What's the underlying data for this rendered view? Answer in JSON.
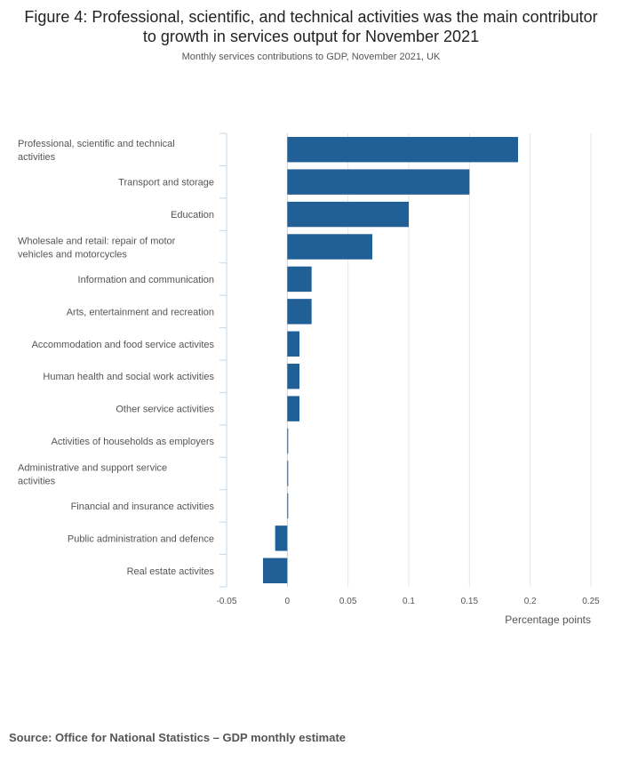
{
  "title": "Figure 4: Professional, scientific, and technical activities was the main contributor to growth in services output for November 2021",
  "subtitle": "Monthly services contributions to GDP, November 2021, UK",
  "source": "Source: Office for National Statistics – GDP monthly estimate",
  "bar_color": "#215f97",
  "chart_data": {
    "type": "bar",
    "orientation": "horizontal",
    "title": "Figure 4: Professional, scientific, and technical activities was the main contributor to growth in services output for November 2021",
    "subtitle": "Monthly services contributions to GDP, November 2021, UK",
    "xlabel": "Percentage points",
    "ylabel": "",
    "xlim": [
      -0.05,
      0.25
    ],
    "xticks": [
      -0.05,
      0,
      0.05,
      0.1,
      0.15,
      0.2,
      0.25
    ],
    "xtick_labels": [
      "-0.05",
      "0",
      "0.05",
      "0.1",
      "0.15",
      "0.2",
      "0.25"
    ],
    "grid": true,
    "categories": [
      [
        "Professional, scientific and technical",
        "activities"
      ],
      [
        "Transport and storage"
      ],
      [
        "Education"
      ],
      [
        "Wholesale and retail: repair of motor",
        "vehicles and motorcycles"
      ],
      [
        "Information and communication"
      ],
      [
        "Arts, entertainment and recreation"
      ],
      [
        "Accommodation and food service activites"
      ],
      [
        "Human health and social work activities"
      ],
      [
        "Other service activities"
      ],
      [
        "Activities of households as employers"
      ],
      [
        "Administrative and support service",
        "activities"
      ],
      [
        "Financial and insurance activities"
      ],
      [
        "Public administration and defence"
      ],
      [
        "Real estate activites"
      ]
    ],
    "values": [
      0.19,
      0.15,
      0.1,
      0.07,
      0.02,
      0.02,
      0.01,
      0.01,
      0.01,
      0.0,
      0.0,
      0.0,
      -0.01,
      -0.02
    ]
  }
}
